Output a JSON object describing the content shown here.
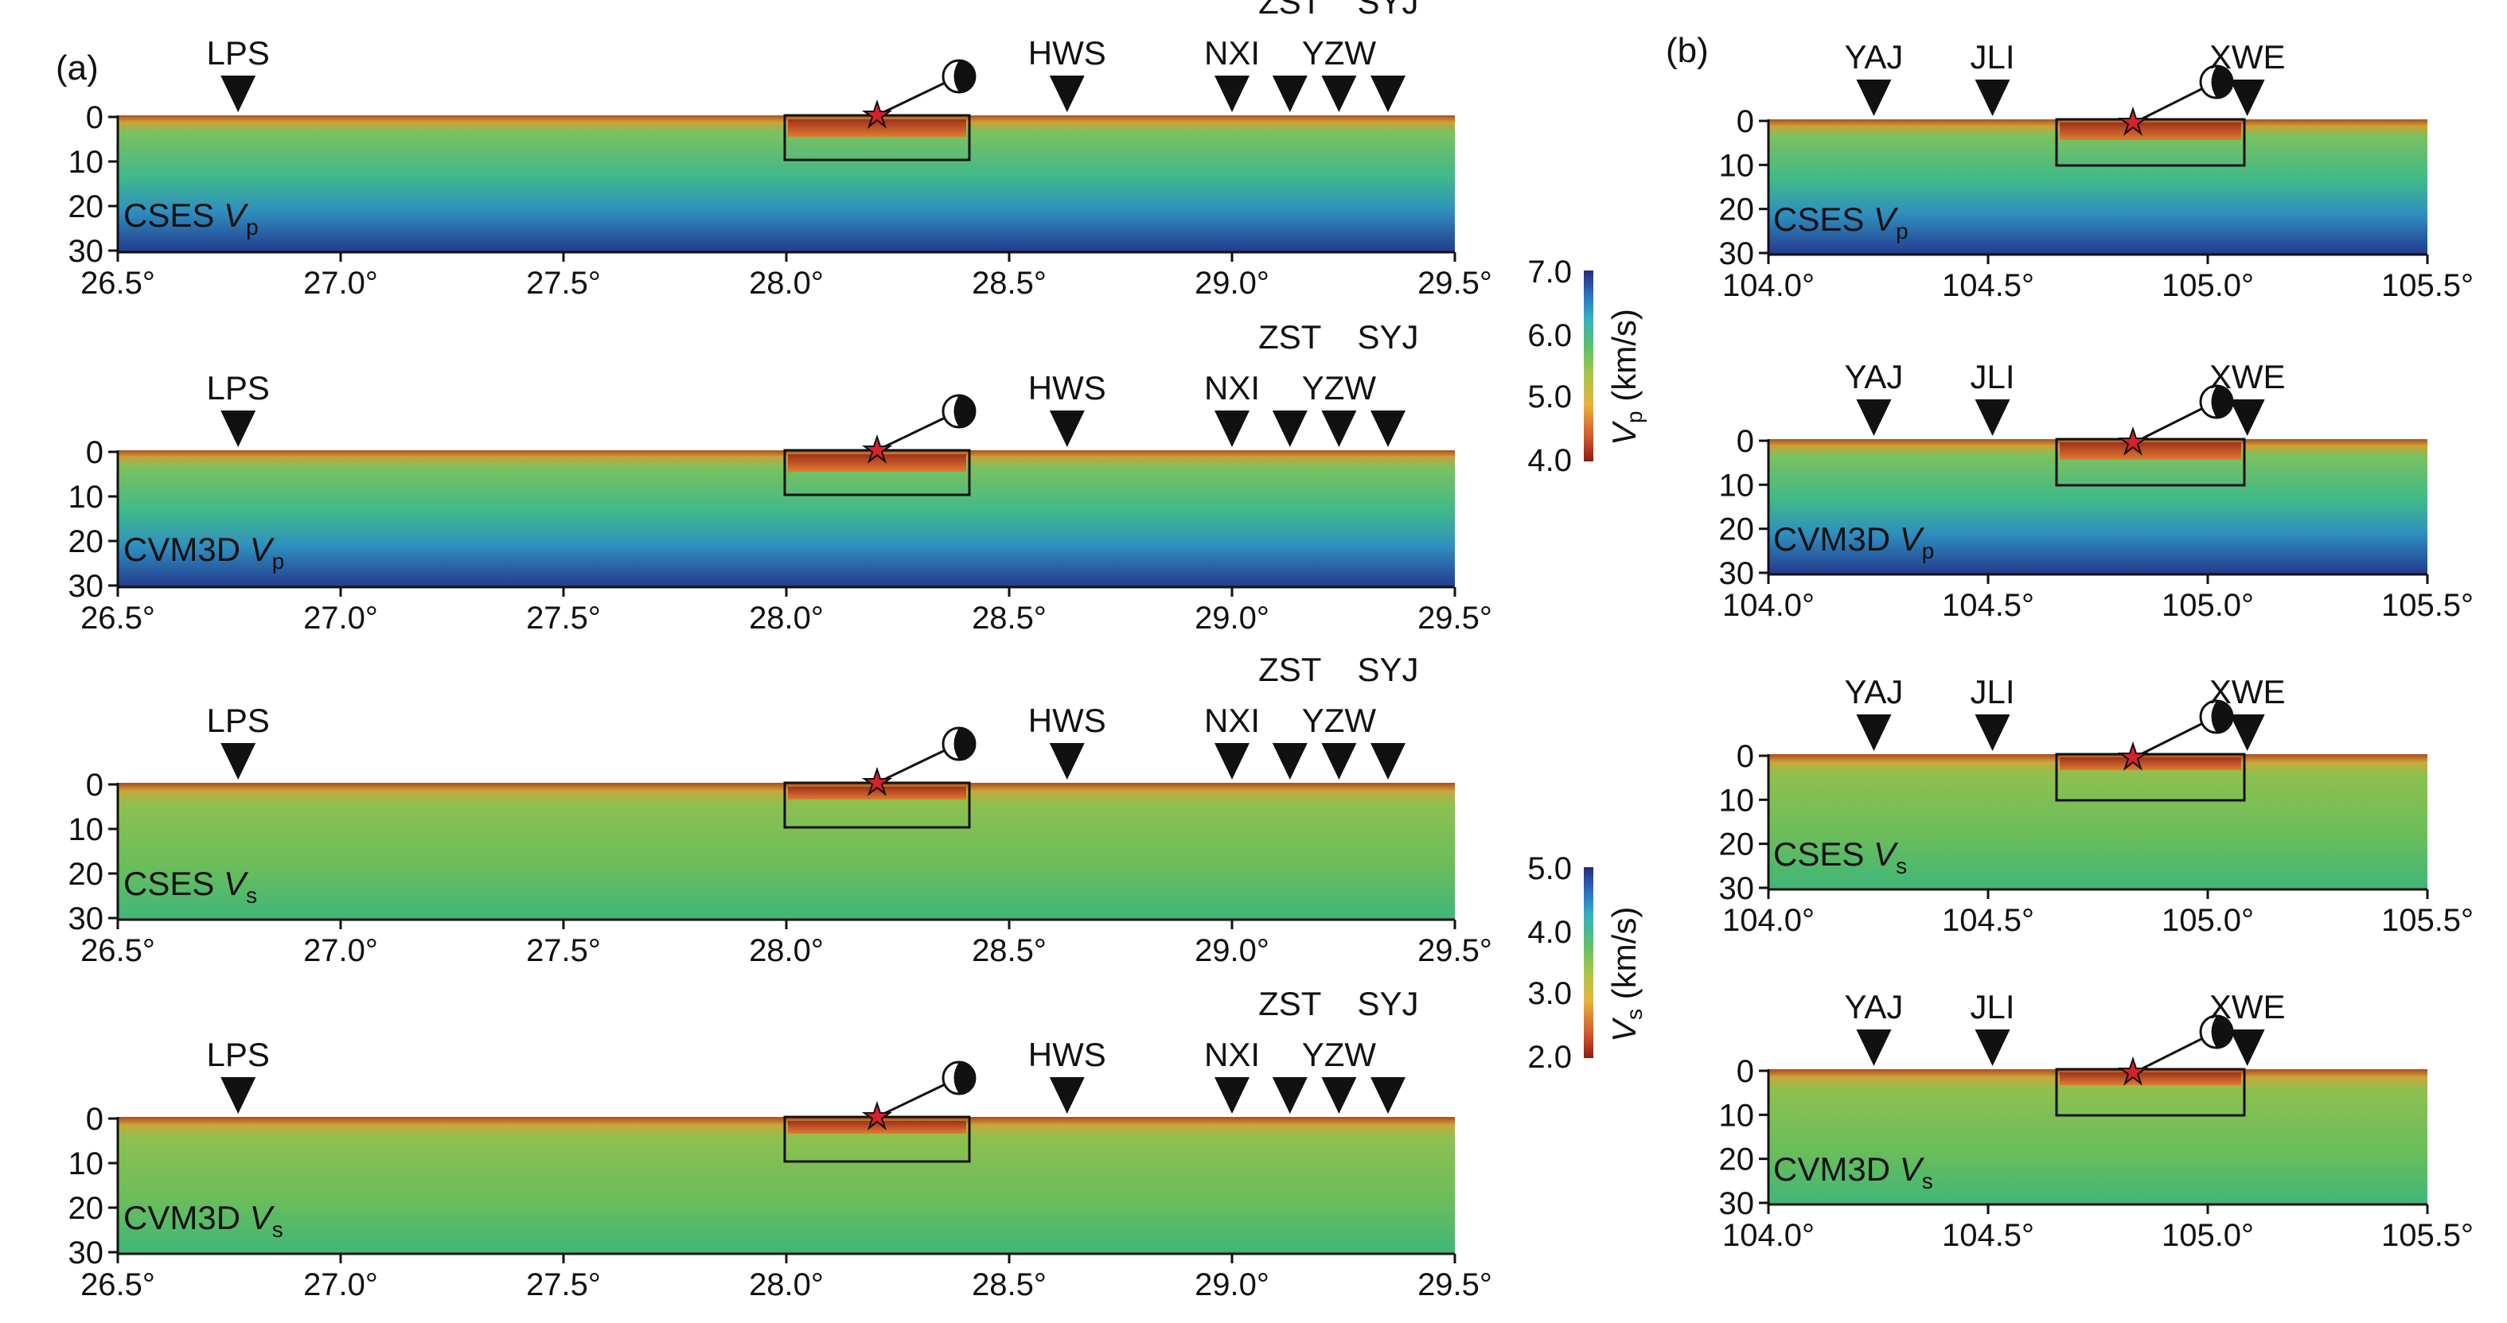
{
  "panel_labels": {
    "a": "(a)",
    "b": "(b)"
  },
  "depth_ticks": [
    "0",
    "10",
    "20",
    "30"
  ],
  "x_ticks_a": [
    "26.5°",
    "27.0°",
    "27.5°",
    "28.0°",
    "28.5°",
    "29.0°",
    "29.5°"
  ],
  "x_ticks_b": [
    "104.0°",
    "104.5°",
    "105.0°",
    "105.5°"
  ],
  "stations_a": [
    {
      "name": "LPS",
      "pos": 26.77
    },
    {
      "name": "HWS",
      "pos": 28.63
    },
    {
      "name": "NXI",
      "pos": 29.0
    },
    {
      "name": "ZST",
      "pos": 29.13
    },
    {
      "name": "YZW",
      "pos": 29.24
    },
    {
      "name": "SYJ",
      "pos": 29.35
    }
  ],
  "stations_b": [
    {
      "name": "YAJ",
      "pos": 104.24
    },
    {
      "name": "JLI",
      "pos": 104.51
    },
    {
      "name": "XWE",
      "pos": 105.09
    }
  ],
  "panels": [
    {
      "row": 1,
      "label_main": "CSES ",
      "label_var": "V",
      "label_sub": "p",
      "type": "vp"
    },
    {
      "row": 2,
      "label_main": "CVM3D ",
      "label_var": "V",
      "label_sub": "p",
      "type": "vp"
    },
    {
      "row": 3,
      "label_main": "CSES ",
      "label_var": "V",
      "label_sub": "s",
      "type": "vs"
    },
    {
      "row": 4,
      "label_main": "CVM3D ",
      "label_var": "V",
      "label_sub": "s",
      "type": "vs"
    }
  ],
  "colorbar_vp": {
    "ticks": [
      "7.0",
      "6.0",
      "5.0",
      "4.0"
    ],
    "var": "V",
    "sub": "p",
    "unit": " (km/s)"
  },
  "colorbar_vs": {
    "ticks": [
      "5.0",
      "4.0",
      "3.0",
      "2.0"
    ],
    "var": "V",
    "sub": "s",
    "unit": " (km/s)"
  },
  "colors": {
    "shallow": "#b5451c",
    "mid": "#6fbf52",
    "deep": "#1d4a9c",
    "epicenter": "#d6222a"
  }
}
